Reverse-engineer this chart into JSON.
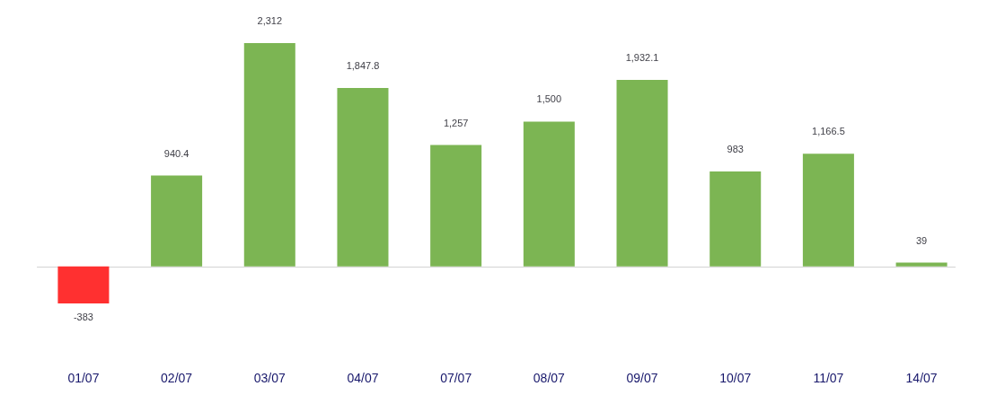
{
  "chart_data": {
    "type": "bar",
    "categories": [
      "01/07",
      "02/07",
      "03/07",
      "04/07",
      "07/07",
      "08/07",
      "09/07",
      "10/07",
      "11/07",
      "14/07"
    ],
    "values": [
      -383,
      940.4,
      2312,
      1847.8,
      1257,
      1500,
      1932.1,
      983,
      1166.5,
      39
    ],
    "colors": [
      "#ff3030",
      "#7cb553",
      "#7cb553",
      "#7cb553",
      "#7cb553",
      "#7cb553",
      "#7cb553",
      "#7cb553",
      "#7cb553",
      "#7cb553"
    ],
    "value_labels": [
      "-383",
      "940.4",
      "2,312",
      "1,847.8",
      "1,257",
      "1,500",
      "1,932.1",
      "983",
      "1,166.5",
      "39"
    ],
    "grid": false,
    "legend": false
  }
}
